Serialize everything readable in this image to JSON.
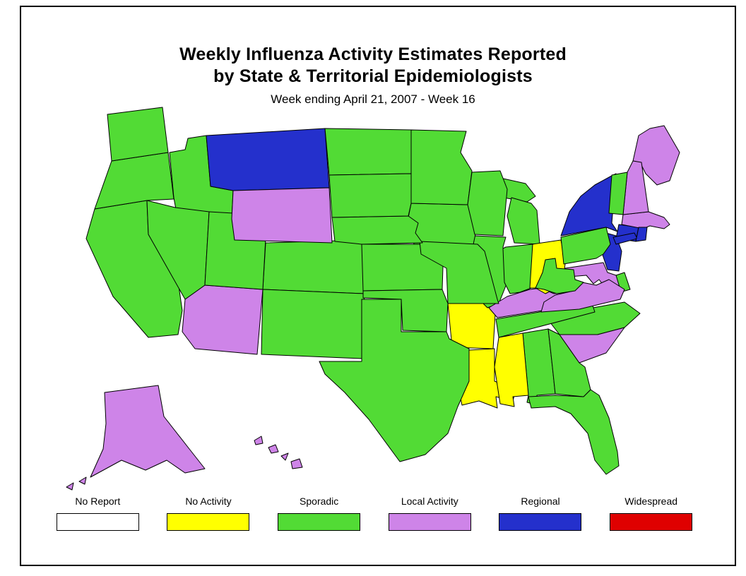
{
  "title": {
    "line1": "Weekly Influenza Activity Estimates Reported",
    "line2": "by State & Territorial Epidemiologists",
    "subtitle": "Week ending April 21, 2007 - Week 16"
  },
  "legend": {
    "items": [
      {
        "key": "no_report",
        "label": "No Report",
        "color": "#FFFFFF"
      },
      {
        "key": "no_activity",
        "label": "No Activity",
        "color": "#FFFF00"
      },
      {
        "key": "sporadic",
        "label": "Sporadic",
        "color": "#52DB35"
      },
      {
        "key": "local_activity",
        "label": "Local Activity",
        "color": "#CE84E8"
      },
      {
        "key": "regional",
        "label": "Regional",
        "color": "#2430CC"
      },
      {
        "key": "widespread",
        "label": "Widespread",
        "color": "#DF0000"
      }
    ]
  },
  "map": {
    "stroke_color": "#000000",
    "states": [
      {
        "id": "AL",
        "name": "Alabama",
        "status": "sporadic"
      },
      {
        "id": "AK",
        "name": "Alaska",
        "status": "local_activity"
      },
      {
        "id": "AZ",
        "name": "Arizona",
        "status": "local_activity"
      },
      {
        "id": "AR",
        "name": "Arkansas",
        "status": "no_activity"
      },
      {
        "id": "CA",
        "name": "California",
        "status": "sporadic"
      },
      {
        "id": "CO",
        "name": "Colorado",
        "status": "sporadic"
      },
      {
        "id": "CT",
        "name": "Connecticut",
        "status": "regional"
      },
      {
        "id": "DE",
        "name": "Delaware",
        "status": "sporadic"
      },
      {
        "id": "FL",
        "name": "Florida",
        "status": "sporadic"
      },
      {
        "id": "GA",
        "name": "Georgia",
        "status": "sporadic"
      },
      {
        "id": "HI",
        "name": "Hawaii",
        "status": "local_activity"
      },
      {
        "id": "ID",
        "name": "Idaho",
        "status": "sporadic"
      },
      {
        "id": "IL",
        "name": "Illinois",
        "status": "sporadic"
      },
      {
        "id": "IN",
        "name": "Indiana",
        "status": "sporadic"
      },
      {
        "id": "IA",
        "name": "Iowa",
        "status": "sporadic"
      },
      {
        "id": "KS",
        "name": "Kansas",
        "status": "sporadic"
      },
      {
        "id": "KY",
        "name": "Kentucky",
        "status": "local_activity"
      },
      {
        "id": "LA",
        "name": "Louisiana",
        "status": "no_activity"
      },
      {
        "id": "ME",
        "name": "Maine",
        "status": "local_activity"
      },
      {
        "id": "MD",
        "name": "Maryland",
        "status": "local_activity"
      },
      {
        "id": "MA",
        "name": "Massachusetts",
        "status": "local_activity"
      },
      {
        "id": "MI",
        "name": "Michigan",
        "status": "sporadic"
      },
      {
        "id": "MN",
        "name": "Minnesota",
        "status": "sporadic"
      },
      {
        "id": "MS",
        "name": "Mississippi",
        "status": "no_activity"
      },
      {
        "id": "MO",
        "name": "Missouri",
        "status": "sporadic"
      },
      {
        "id": "MT",
        "name": "Montana",
        "status": "regional"
      },
      {
        "id": "NE",
        "name": "Nebraska",
        "status": "sporadic"
      },
      {
        "id": "NV",
        "name": "Nevada",
        "status": "sporadic"
      },
      {
        "id": "NH",
        "name": "New Hampshire",
        "status": "local_activity"
      },
      {
        "id": "NJ",
        "name": "New Jersey",
        "status": "regional"
      },
      {
        "id": "NM",
        "name": "New Mexico",
        "status": "sporadic"
      },
      {
        "id": "NY",
        "name": "New York",
        "status": "regional"
      },
      {
        "id": "NC",
        "name": "North Carolina",
        "status": "sporadic"
      },
      {
        "id": "ND",
        "name": "North Dakota",
        "status": "sporadic"
      },
      {
        "id": "OH",
        "name": "Ohio",
        "status": "no_activity"
      },
      {
        "id": "OK",
        "name": "Oklahoma",
        "status": "sporadic"
      },
      {
        "id": "OR",
        "name": "Oregon",
        "status": "sporadic"
      },
      {
        "id": "PA",
        "name": "Pennsylvania",
        "status": "sporadic"
      },
      {
        "id": "RI",
        "name": "Rhode Island",
        "status": "regional"
      },
      {
        "id": "SC",
        "name": "South Carolina",
        "status": "local_activity"
      },
      {
        "id": "SD",
        "name": "South Dakota",
        "status": "sporadic"
      },
      {
        "id": "TN",
        "name": "Tennessee",
        "status": "sporadic"
      },
      {
        "id": "TX",
        "name": "Texas",
        "status": "sporadic"
      },
      {
        "id": "UT",
        "name": "Utah",
        "status": "sporadic"
      },
      {
        "id": "VT",
        "name": "Vermont",
        "status": "sporadic"
      },
      {
        "id": "VA",
        "name": "Virginia",
        "status": "local_activity"
      },
      {
        "id": "WA",
        "name": "Washington",
        "status": "sporadic"
      },
      {
        "id": "WV",
        "name": "West Virginia",
        "status": "sporadic"
      },
      {
        "id": "WI",
        "name": "Wisconsin",
        "status": "sporadic"
      },
      {
        "id": "WY",
        "name": "Wyoming",
        "status": "local_activity"
      }
    ]
  }
}
